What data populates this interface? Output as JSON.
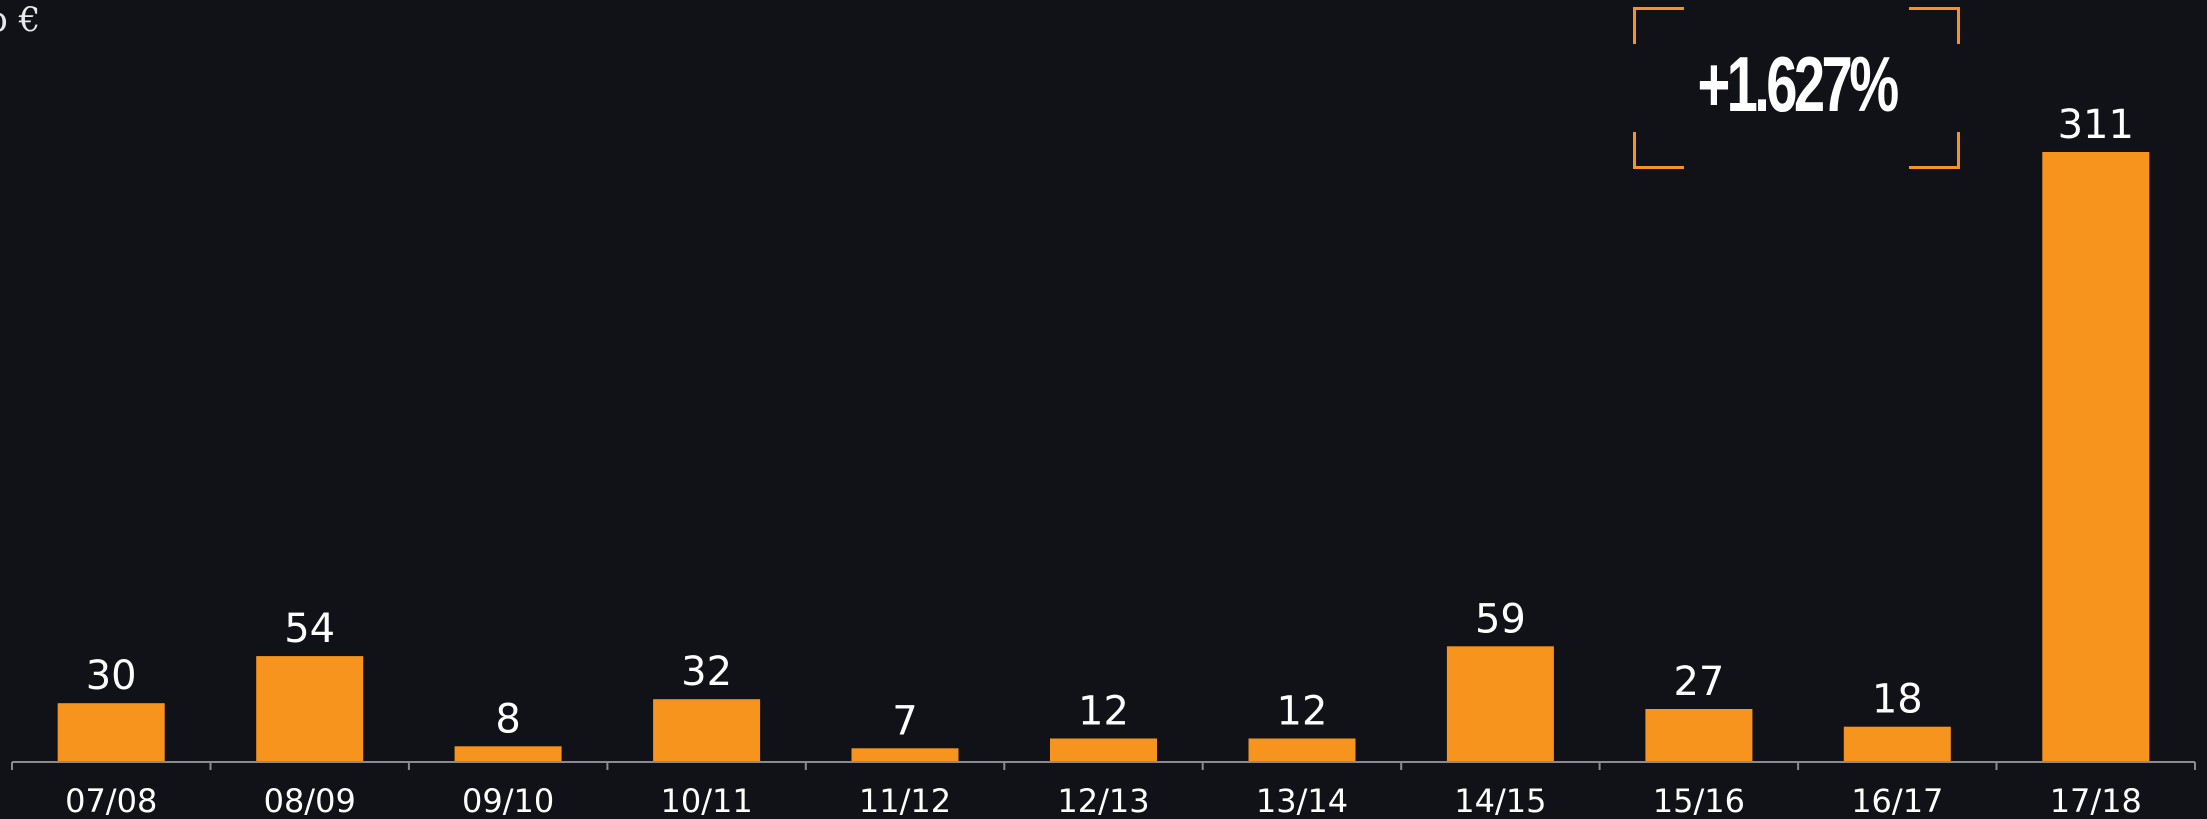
{
  "unit_label": "b €",
  "callout": {
    "text": "+1.627%",
    "accent_color": "#f7941d"
  },
  "colors": {
    "background": "#111217",
    "bar": "#f7941d",
    "axis": "#8a8b90",
    "text": "#ffffff"
  },
  "chart_data": {
    "type": "bar",
    "categories": [
      "07/08",
      "08/09",
      "09/10",
      "10/11",
      "11/12",
      "12/13",
      "13/14",
      "14/15",
      "15/16",
      "16/17",
      "17/18"
    ],
    "values": [
      30,
      54,
      8,
      32,
      7,
      12,
      12,
      59,
      27,
      18,
      311
    ],
    "data_labels": [
      "30",
      "54",
      "8",
      "32",
      "7",
      "12",
      "12",
      "59",
      "27",
      "18",
      "311"
    ],
    "title": "",
    "xlabel": "",
    "ylabel": "b €",
    "ylim": [
      0,
      311
    ],
    "grid": false,
    "legend": "none"
  }
}
